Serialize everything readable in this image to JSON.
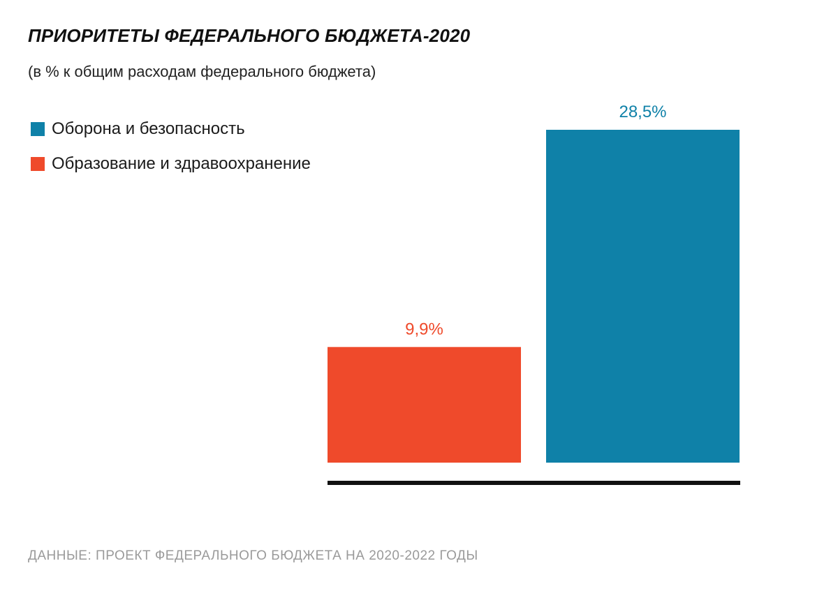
{
  "chart_data": {
    "type": "bar",
    "title": "ПРИОРИТЕТЫ ФЕДЕРАЛЬНОГО БЮДЖЕТА-2020",
    "subtitle": "(в % к общим расходам федерального бюджета)",
    "unit": "%",
    "series": [
      {
        "name": "Образование и здравоохранение",
        "value": 9.9,
        "label": "9,9%",
        "color": "#EF4A2B"
      },
      {
        "name": "Оборона и безопасность",
        "value": 28.5,
        "label": "28,5%",
        "color": "#0F81A8"
      }
    ],
    "legend": [
      {
        "label": "Оборона и безопасность",
        "color": "#0F81A8"
      },
      {
        "label": "Образование и здравоохранение",
        "color": "#EF4A2B"
      }
    ],
    "legend_position": "top-left",
    "grid": false
  },
  "source": "ДАННЫЕ: ПРОЕКТ ФЕДЕРАЛЬНОГО БЮДЖЕТА НА 2020-2022 ГОДЫ",
  "colors": {
    "baseline": "#111111",
    "defense": "#0F81A8",
    "education": "#EF4A2B"
  }
}
